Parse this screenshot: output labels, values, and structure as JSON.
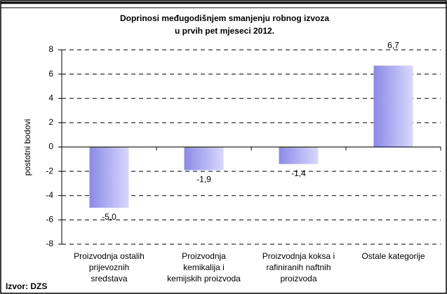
{
  "chart_data": {
    "type": "bar",
    "title": [
      "Doprinosi međugodišnjem smanjenju robnog izvoza",
      "u prvih pet mjeseci 2012."
    ],
    "y_label": "postotni bodovi",
    "categories": [
      "Proizvodnja ostalih\nprijevoznih\nsredstava",
      "Proizvodnja\nkemikalija i\nkemijskih proizvoda",
      "Proizvodnja koksa i\nrafiniranih naftnih\nproizvoda",
      "Ostale kategorije"
    ],
    "values": [
      -5.0,
      -1.9,
      -1.4,
      6.7
    ],
    "value_labels": [
      "-5,0",
      "-1,9",
      "-1,4",
      "6,7"
    ],
    "color": "#8a8ae6",
    "ylim": [
      -8,
      8
    ],
    "yticks": [
      -8,
      -6,
      -4,
      -2,
      0,
      2,
      4,
      6,
      8
    ],
    "grid": true,
    "source": "Izvor: DZS"
  }
}
